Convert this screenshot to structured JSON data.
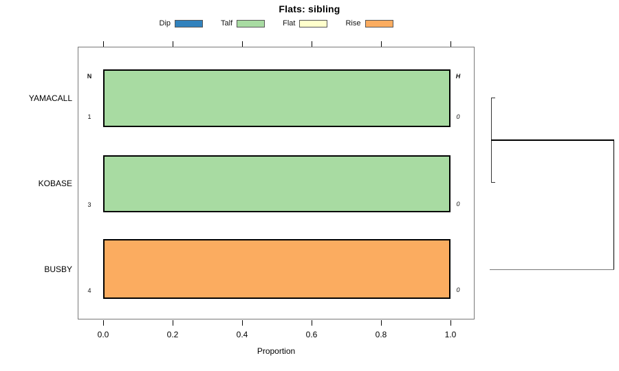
{
  "title": "Flats: sibling",
  "legend": {
    "items": [
      {
        "label": "Dip",
        "color": "#3182BD"
      },
      {
        "label": "Talf",
        "color": "#A8DBA2"
      },
      {
        "label": "Flat",
        "color": "#FFFFCC"
      },
      {
        "label": "Rise",
        "color": "#FBAC60"
      }
    ]
  },
  "columns": {
    "left_header": "N",
    "right_header": "H"
  },
  "rows": [
    {
      "name": "YAMACALL",
      "n": "1",
      "h": "0",
      "category": "Talf",
      "color": "#A8DBA2",
      "proportion": 1.0
    },
    {
      "name": "KOBASE",
      "n": "3",
      "h": "0",
      "category": "Talf",
      "color": "#A8DBA2",
      "proportion": 1.0
    },
    {
      "name": "BUSBY",
      "n": "4",
      "h": "0",
      "category": "Rise",
      "color": "#FBAC60",
      "proportion": 1.0
    }
  ],
  "axis": {
    "label": "Proportion",
    "ticks": [
      "0.0",
      "0.2",
      "0.4",
      "0.6",
      "0.8",
      "1.0"
    ]
  },
  "chart_data": {
    "type": "bar",
    "orientation": "horizontal",
    "title": "Flats: sibling",
    "xlabel": "Proportion",
    "xlim": [
      0,
      1
    ],
    "xticks": [
      0.0,
      0.2,
      0.4,
      0.6,
      0.8,
      1.0
    ],
    "categories": [
      "YAMACALL",
      "KOBASE",
      "BUSBY"
    ],
    "series": [
      {
        "name": "Dip",
        "color": "#3182BD",
        "values": [
          0,
          0,
          0
        ]
      },
      {
        "name": "Talf",
        "color": "#A8DBA2",
        "values": [
          1.0,
          1.0,
          0
        ]
      },
      {
        "name": "Flat",
        "color": "#FFFFCC",
        "values": [
          0,
          0,
          0
        ]
      },
      {
        "name": "Rise",
        "color": "#FBAC60",
        "values": [
          0,
          0,
          1.0
        ]
      }
    ],
    "annotations": {
      "N": [
        "1",
        "3",
        "4"
      ],
      "H": [
        "0",
        "0",
        "0"
      ]
    },
    "legend_position": "top-center",
    "grid": false,
    "dendrogram": {
      "position": "right-margin",
      "merges": [
        {
          "members": [
            "YAMACALL",
            "KOBASE"
          ],
          "order": 1
        },
        {
          "members": [
            "YAMACALL+KOBASE",
            "BUSBY"
          ],
          "order": 2
        }
      ]
    }
  }
}
